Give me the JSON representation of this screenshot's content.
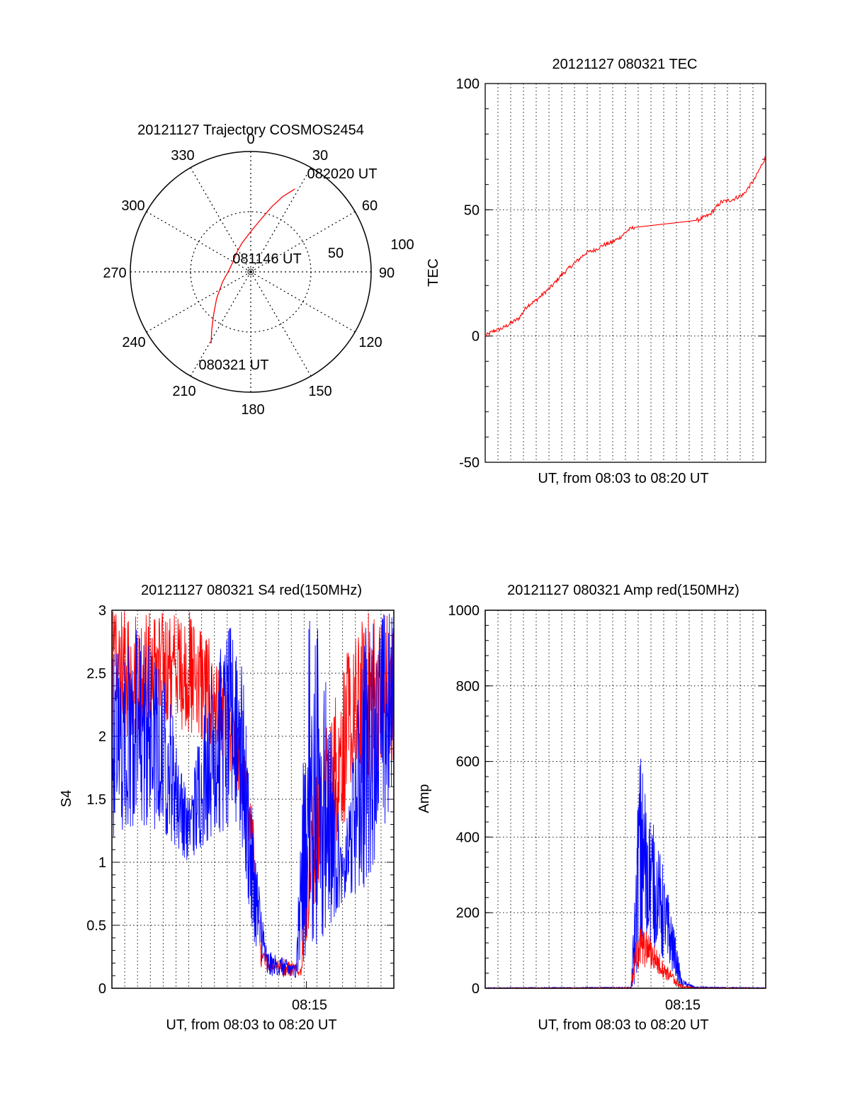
{
  "colors": {
    "red": "#ff0000",
    "blue": "#0000ff",
    "axis": "#000000"
  },
  "chart_data": [
    {
      "type": "polar",
      "title": "20121127 Trajectory COSMOS2454",
      "azimuth_labels": [
        "0",
        "30",
        "60",
        "90",
        "120",
        "150",
        "180",
        "210",
        "240",
        "270",
        "300",
        "330"
      ],
      "radial_labels": [
        "50",
        "100"
      ],
      "radial_max": 100,
      "series": [
        {
          "color": "red",
          "points": [
            {
              "az": 209,
              "r": 68
            },
            {
              "az": 214,
              "r": 58
            },
            {
              "az": 221,
              "r": 47
            },
            {
              "az": 232,
              "r": 36
            },
            {
              "az": 250,
              "r": 25
            },
            {
              "az": 275,
              "r": 18
            },
            {
              "az": 300,
              "r": 17
            },
            {
              "az": 325,
              "r": 20
            },
            {
              "az": 343,
              "r": 25
            },
            {
              "az": 2,
              "r": 35
            },
            {
              "az": 12,
              "r": 46
            },
            {
              "az": 18,
              "r": 57
            },
            {
              "az": 23,
              "r": 68
            },
            {
              "az": 28,
              "r": 78
            }
          ]
        }
      ],
      "annotations": [
        {
          "text": "082020 UT",
          "az": 28,
          "r": 78
        },
        {
          "text": "081146 UT",
          "az": 340,
          "r": 8
        },
        {
          "text": "080321 UT",
          "az": 209,
          "r": 68
        }
      ]
    },
    {
      "type": "line",
      "title": "20121127 080321 TEC",
      "xlabel": "UT, from 08:03 to 08:20 UT",
      "ylabel": "TEC",
      "xlim": [
        0,
        1
      ],
      "ylim": [
        -50,
        100
      ],
      "yticks": [
        "-50",
        "0",
        "50",
        "100"
      ],
      "series": [
        {
          "color": "red",
          "x": [
            0,
            0.03,
            0.06,
            0.09,
            0.12,
            0.15,
            0.18,
            0.21,
            0.24,
            0.27,
            0.3,
            0.33,
            0.36,
            0.39,
            0.42,
            0.45,
            0.48,
            0.51,
            0.53,
            0.57,
            0.61,
            0.65,
            0.69,
            0.73,
            0.76,
            0.8,
            0.84,
            0.88,
            0.92,
            0.96,
            1.0
          ],
          "y": [
            0,
            2,
            3,
            5,
            7,
            12,
            14,
            17,
            20,
            24,
            27,
            30,
            33,
            34,
            36,
            37,
            39,
            42,
            43,
            43.5,
            44,
            44.5,
            45,
            45.5,
            46,
            48,
            53,
            54,
            56,
            62,
            71
          ]
        }
      ]
    },
    {
      "type": "line",
      "title": "20121127 080321 S4 red(150MHz)",
      "xlabel": "UT, from 08:03 to 08:20 UT",
      "ylabel": "S4",
      "xtick_label": "08:15",
      "xtick_pos": 0.69,
      "ylim": [
        0,
        3
      ],
      "yticks": [
        "0",
        "0.5",
        "1",
        "1.5",
        "2",
        "2.5",
        "3"
      ],
      "series": [
        {
          "color": "red",
          "envelope": [
            {
              "x": 0.0,
              "lo": 2.0,
              "hi": 3.0
            },
            {
              "x": 0.1,
              "lo": 2.0,
              "hi": 3.0
            },
            {
              "x": 0.2,
              "lo": 2.1,
              "hi": 3.0
            },
            {
              "x": 0.3,
              "lo": 2.0,
              "hi": 3.0
            },
            {
              "x": 0.4,
              "lo": 1.8,
              "hi": 2.5
            },
            {
              "x": 0.47,
              "lo": 1.4,
              "hi": 1.9
            },
            {
              "x": 0.5,
              "lo": 0.8,
              "hi": 1.4
            },
            {
              "x": 0.53,
              "lo": 0.15,
              "hi": 0.3
            },
            {
              "x": 0.6,
              "lo": 0.1,
              "hi": 0.25
            },
            {
              "x": 0.67,
              "lo": 0.1,
              "hi": 0.2
            },
            {
              "x": 0.7,
              "lo": 0.5,
              "hi": 1.5
            },
            {
              "x": 0.75,
              "lo": 0.9,
              "hi": 2.0
            },
            {
              "x": 0.82,
              "lo": 1.3,
              "hi": 2.6
            },
            {
              "x": 0.9,
              "lo": 1.6,
              "hi": 3.0
            },
            {
              "x": 1.0,
              "lo": 1.7,
              "hi": 3.0
            }
          ]
        },
        {
          "color": "blue",
          "envelope": [
            {
              "x": 0.0,
              "lo": 1.2,
              "hi": 2.7
            },
            {
              "x": 0.1,
              "lo": 1.3,
              "hi": 2.9
            },
            {
              "x": 0.2,
              "lo": 1.2,
              "hi": 2.4
            },
            {
              "x": 0.27,
              "lo": 1.0,
              "hi": 1.5
            },
            {
              "x": 0.35,
              "lo": 1.2,
              "hi": 2.6
            },
            {
              "x": 0.45,
              "lo": 1.3,
              "hi": 3.0
            },
            {
              "x": 0.5,
              "lo": 0.4,
              "hi": 1.3
            },
            {
              "x": 0.55,
              "lo": 0.1,
              "hi": 0.3
            },
            {
              "x": 0.65,
              "lo": 0.08,
              "hi": 0.2
            },
            {
              "x": 0.7,
              "lo": 0.3,
              "hi": 3.0
            },
            {
              "x": 0.75,
              "lo": 0.4,
              "hi": 2.8
            },
            {
              "x": 0.82,
              "lo": 0.7,
              "hi": 1.0
            },
            {
              "x": 0.9,
              "lo": 0.8,
              "hi": 3.0
            },
            {
              "x": 1.0,
              "lo": 1.5,
              "hi": 3.0
            }
          ]
        }
      ]
    },
    {
      "type": "line",
      "title": "20121127 080321 Amp red(150MHz)",
      "xlabel": "UT, from 08:03 to 08:20 UT",
      "ylabel": "Amp",
      "xtick_label": "08:15",
      "xtick_pos": 0.69,
      "ylim": [
        0,
        1000
      ],
      "yticks": [
        "0",
        "200",
        "400",
        "600",
        "800",
        "1000"
      ],
      "series": [
        {
          "color": "blue",
          "envelope": [
            {
              "x": 0.0,
              "lo": 0,
              "hi": 2
            },
            {
              "x": 0.52,
              "lo": 0,
              "hi": 3
            },
            {
              "x": 0.535,
              "lo": 10,
              "hi": 300
            },
            {
              "x": 0.55,
              "lo": 100,
              "hi": 640
            },
            {
              "x": 0.58,
              "lo": 120,
              "hi": 500
            },
            {
              "x": 0.6,
              "lo": 110,
              "hi": 440
            },
            {
              "x": 0.63,
              "lo": 80,
              "hi": 340
            },
            {
              "x": 0.67,
              "lo": 40,
              "hi": 180
            },
            {
              "x": 0.7,
              "lo": 5,
              "hi": 25
            },
            {
              "x": 0.75,
              "lo": 0,
              "hi": 4
            },
            {
              "x": 1.0,
              "lo": 0,
              "hi": 2
            }
          ]
        },
        {
          "color": "red",
          "envelope": [
            {
              "x": 0.0,
              "lo": 0,
              "hi": 1
            },
            {
              "x": 0.52,
              "lo": 0,
              "hi": 2
            },
            {
              "x": 0.535,
              "lo": 30,
              "hi": 120
            },
            {
              "x": 0.55,
              "lo": 60,
              "hi": 170
            },
            {
              "x": 0.59,
              "lo": 50,
              "hi": 140
            },
            {
              "x": 0.63,
              "lo": 30,
              "hi": 80
            },
            {
              "x": 0.67,
              "lo": 10,
              "hi": 40
            },
            {
              "x": 0.7,
              "lo": 0,
              "hi": 8
            },
            {
              "x": 0.75,
              "lo": 0,
              "hi": 2
            },
            {
              "x": 1.0,
              "lo": 0,
              "hi": 1
            }
          ]
        }
      ]
    }
  ]
}
